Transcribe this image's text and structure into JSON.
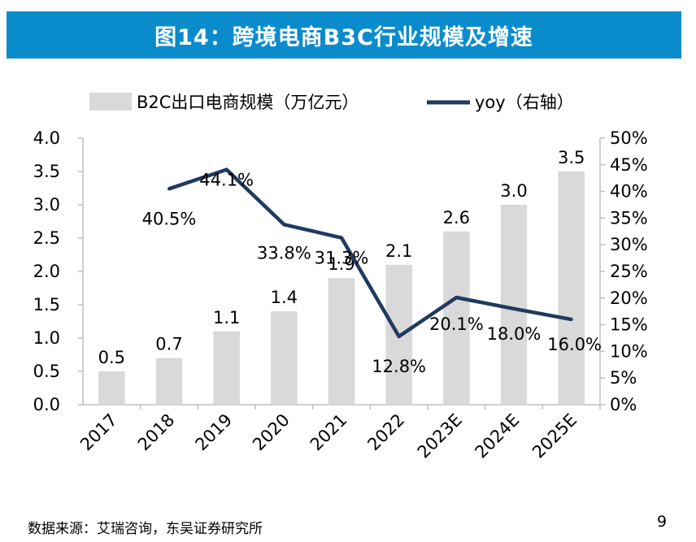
{
  "title": "图14：跨境电商B3C行业规模及增速",
  "source": "数据来源：艾瑞咨询，东吴证券研究所",
  "page_number": "9",
  "colors": {
    "title_bg": "#0a8ccc",
    "bar": "#d9d9d9",
    "line": "#1f3a5f"
  },
  "chart_data": {
    "type": "bar",
    "categories": [
      "2017",
      "2018",
      "2019",
      "2020",
      "2021",
      "2022",
      "2023E",
      "2024E",
      "2025E"
    ],
    "series": [
      {
        "name": "B2C出口电商规模（万亿元）",
        "type": "bar",
        "axis": "left",
        "values": [
          0.5,
          0.7,
          1.1,
          1.4,
          1.9,
          2.1,
          2.6,
          3.0,
          3.5
        ],
        "labels": [
          "0.5",
          "0.7",
          "1.1",
          "1.4",
          "1.9",
          "2.1",
          "2.6",
          "3.0",
          "3.5"
        ]
      },
      {
        "name": "yoy（右轴）",
        "type": "line",
        "axis": "right",
        "values": [
          null,
          40.5,
          44.1,
          33.8,
          31.3,
          12.8,
          20.1,
          18.0,
          16.0
        ],
        "labels": [
          "",
          "40.5%",
          "44.1%",
          "33.8%",
          "31.3%",
          "12.8%",
          "20.1%",
          "18.0%",
          "16.0%"
        ]
      }
    ],
    "y_left": {
      "range": [
        0,
        4.0
      ],
      "ticks": [
        "0.0",
        "0.5",
        "1.0",
        "1.5",
        "2.0",
        "2.5",
        "3.0",
        "3.5",
        "4.0"
      ]
    },
    "y_right": {
      "range": [
        0,
        50
      ],
      "ticks": [
        "0%",
        "5%",
        "10%",
        "15%",
        "20%",
        "25%",
        "30%",
        "35%",
        "40%",
        "45%",
        "50%"
      ]
    },
    "legend_position": "top",
    "grid": false
  }
}
